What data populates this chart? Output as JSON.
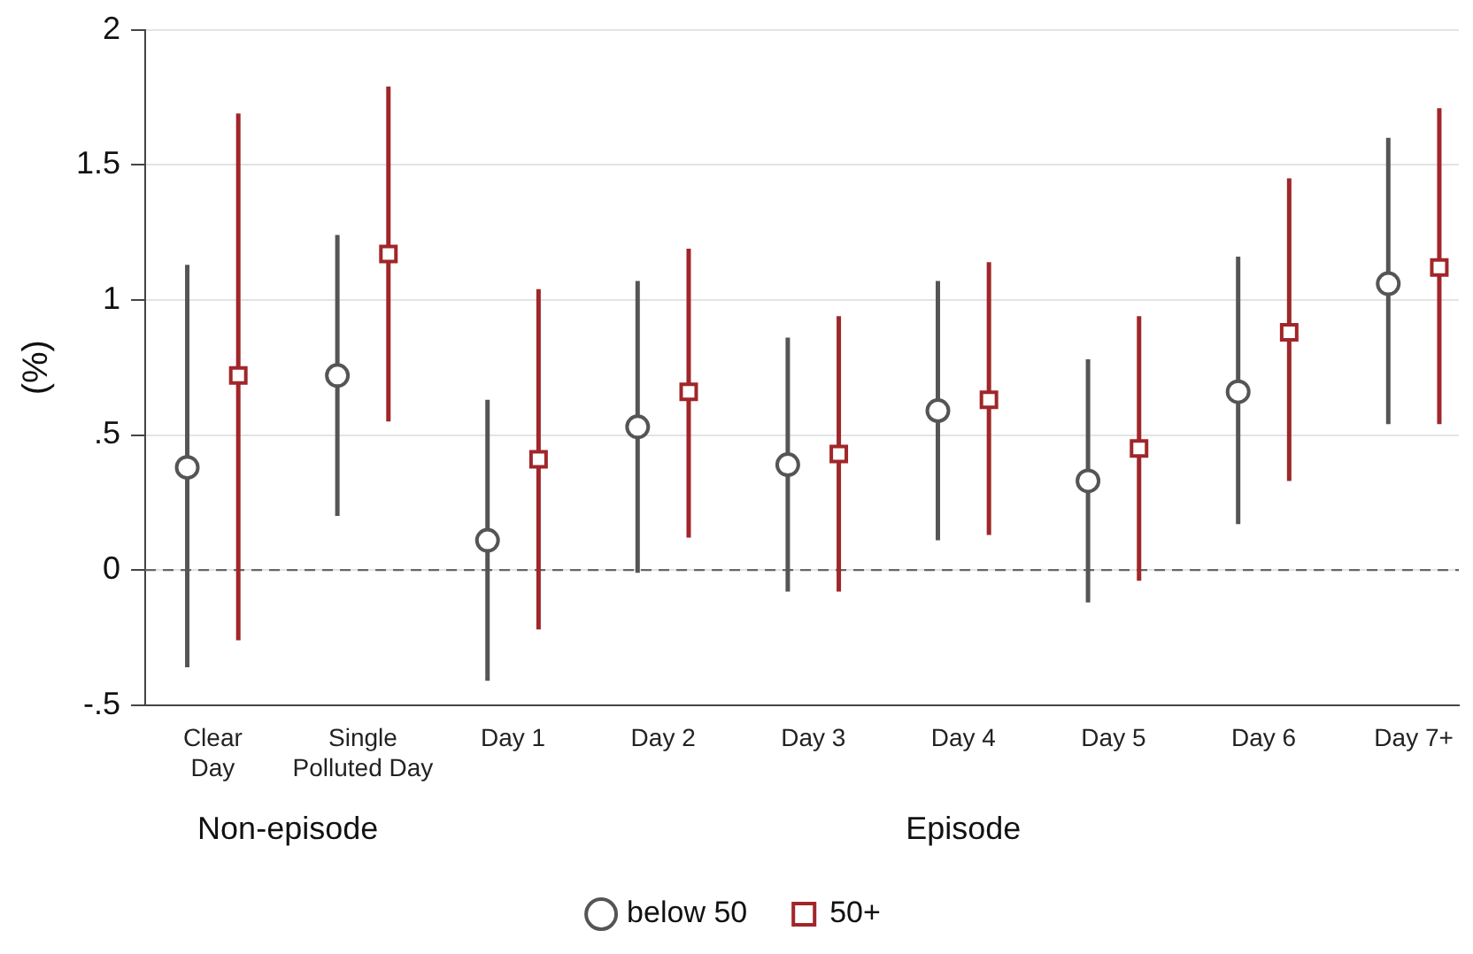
{
  "chart_data": {
    "type": "scatter",
    "ylabel": "(%)",
    "categories": [
      "Clear Day",
      "Single Polluted Day",
      "Day 1",
      "Day 2",
      "Day 3",
      "Day 4",
      "Day 5",
      "Day 6",
      "Day 7+"
    ],
    "series": [
      {
        "name": "below 50",
        "color": "#555555",
        "marker": "circle",
        "values": [
          0.38,
          0.72,
          0.11,
          0.53,
          0.39,
          0.59,
          0.33,
          0.66,
          1.06
        ],
        "errors": [
          [
            -0.36,
            1.13
          ],
          [
            0.2,
            1.24
          ],
          [
            -0.41,
            0.63
          ],
          [
            -0.01,
            1.07
          ],
          [
            -0.08,
            0.86
          ],
          [
            0.11,
            1.07
          ],
          [
            -0.12,
            0.78
          ],
          [
            0.17,
            1.16
          ],
          [
            0.54,
            1.6
          ]
        ]
      },
      {
        "name": "50+",
        "color": "#a0262a",
        "marker": "square",
        "values": [
          0.72,
          1.17,
          0.41,
          0.66,
          0.43,
          0.63,
          0.45,
          0.88,
          1.12
        ],
        "errors": [
          [
            -0.26,
            1.69
          ],
          [
            0.55,
            1.79
          ],
          [
            -0.22,
            1.04
          ],
          [
            0.12,
            1.19
          ],
          [
            -0.08,
            0.94
          ],
          [
            0.13,
            1.14
          ],
          [
            -0.04,
            0.94
          ],
          [
            0.33,
            1.45
          ],
          [
            0.54,
            1.71
          ]
        ]
      }
    ],
    "ylim": [
      -0.5,
      2
    ],
    "yticks": [
      {
        "value": -0.5,
        "label": "-.5"
      },
      0,
      {
        "value": 0.5,
        "label": ".5"
      },
      1,
      1.5,
      2
    ],
    "grid": "y",
    "legend": "bottom",
    "ref_lines": [
      {
        "axis": "y",
        "value": 0,
        "color": "#666666",
        "line_style": "dashed"
      }
    ],
    "annotations": [
      "Non-episode",
      "Episode"
    ]
  }
}
